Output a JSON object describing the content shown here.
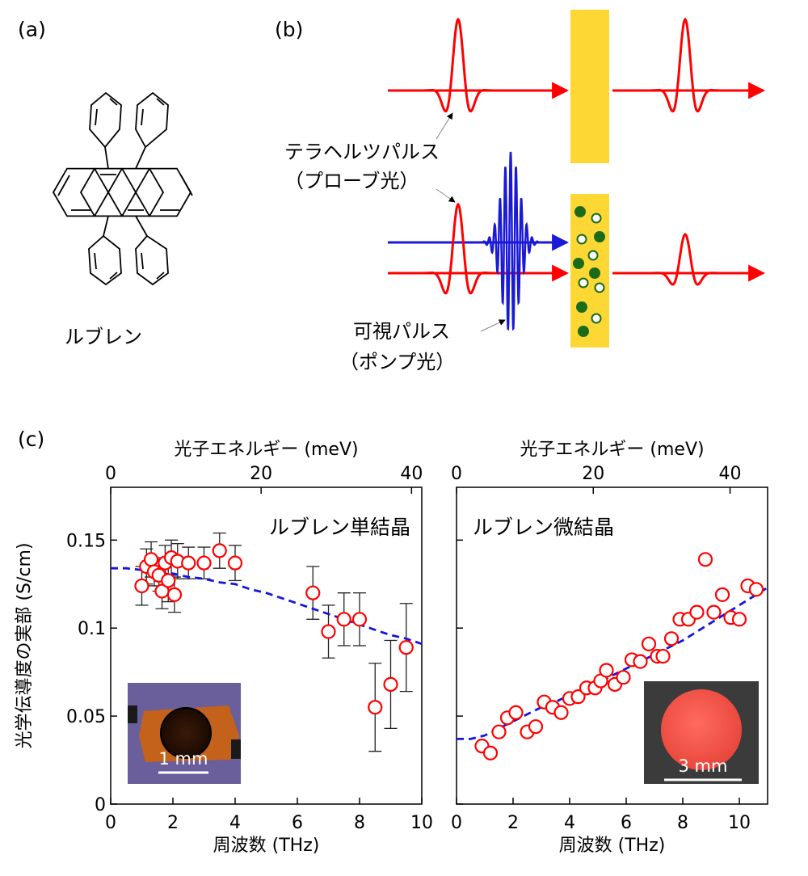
{
  "panels": {
    "a": {
      "label": "(a)",
      "molecule_name": "ルブレン"
    },
    "b": {
      "label": "(b)",
      "probe_label_line1": "テラヘルツパルス",
      "probe_label_line2": "（プローブ光）",
      "pump_label_line1": "可視パルス",
      "pump_label_line2": "（ポンプ光）"
    },
    "c": {
      "label": "(c)"
    }
  },
  "colors": {
    "red": "#ff0000",
    "blue": "#1a1ad6",
    "yellow": "#fdd835",
    "green": "#1b6b1b",
    "fit": "#1515e0",
    "marker": "#ff0000",
    "errorbar": "#222222"
  },
  "chart_data": [
    {
      "type": "scatter",
      "title": "ルブレン単結晶",
      "xlabel": "周波数 (THz)",
      "ylabel": "光学伝導度の実部 (S/cm)",
      "top_xlabel": "光子エネルギー (meV)",
      "xlim": [
        0,
        10
      ],
      "ylim": [
        0,
        0.18
      ],
      "top_xlim_mev": [
        0,
        41.36
      ],
      "xticks": [
        0,
        2,
        4,
        6,
        8,
        10
      ],
      "xtick_labels": [
        "0",
        "2",
        "4",
        "6",
        "8",
        "10"
      ],
      "yticks": [
        0,
        0.05,
        0.1,
        0.15
      ],
      "ytick_labels": [
        "0",
        "0.05",
        "0.1",
        "0.15"
      ],
      "top_xticks": [
        0,
        20,
        40
      ],
      "top_xtick_labels": [
        "0",
        "20",
        "40"
      ],
      "points": {
        "x": [
          1.0,
          1.15,
          1.3,
          1.4,
          1.55,
          1.65,
          1.75,
          1.85,
          1.95,
          2.05,
          2.15,
          2.5,
          3.0,
          3.5,
          4.0,
          6.5,
          7.0,
          7.5,
          8.0,
          8.5,
          9.0,
          9.5
        ],
        "y": [
          0.124,
          0.135,
          0.139,
          0.132,
          0.13,
          0.121,
          0.137,
          0.127,
          0.14,
          0.119,
          0.138,
          0.137,
          0.137,
          0.144,
          0.137,
          0.12,
          0.098,
          0.105,
          0.105,
          0.055,
          0.068,
          0.089
        ],
        "err": [
          0.011,
          0.01,
          0.01,
          0.008,
          0.009,
          0.01,
          0.01,
          0.012,
          0.01,
          0.01,
          0.01,
          0.009,
          0.009,
          0.01,
          0.01,
          0.015,
          0.015,
          0.015,
          0.015,
          0.025,
          0.025,
          0.025
        ]
      },
      "fit": {
        "x": [
          0,
          0.5,
          1,
          1.5,
          2,
          2.5,
          3,
          3.5,
          4,
          4.5,
          5,
          5.5,
          6,
          6.5,
          7,
          7.5,
          8,
          8.5,
          9,
          9.5,
          10
        ],
        "y": [
          0.134,
          0.134,
          0.133,
          0.132,
          0.131,
          0.129,
          0.128,
          0.126,
          0.125,
          0.122,
          0.12,
          0.117,
          0.114,
          0.111,
          0.108,
          0.105,
          0.102,
          0.099,
          0.096,
          0.094,
          0.091
        ]
      },
      "inset_scale_label": "1 mm"
    },
    {
      "type": "scatter",
      "title": "ルブレン微結晶",
      "xlabel": "周波数 (THz)",
      "top_xlabel": "光子エネルギー (meV)",
      "xlim": [
        0,
        11
      ],
      "ylim": [
        0,
        0.18
      ],
      "top_xlim_mev": [
        0,
        45.49
      ],
      "xticks": [
        0,
        2,
        4,
        6,
        8,
        10
      ],
      "xtick_labels": [
        "0",
        "2",
        "4",
        "6",
        "8",
        "10"
      ],
      "yticks": [
        0,
        0.05,
        0.1,
        0.15
      ],
      "top_xticks": [
        0,
        20,
        40
      ],
      "top_xtick_labels": [
        "0",
        "20",
        "40"
      ],
      "points": {
        "x": [
          0.9,
          1.2,
          1.5,
          1.8,
          2.1,
          2.5,
          2.8,
          3.1,
          3.4,
          3.7,
          4.0,
          4.3,
          4.6,
          4.9,
          5.1,
          5.3,
          5.6,
          5.9,
          6.2,
          6.5,
          6.8,
          7.1,
          7.3,
          7.6,
          7.9,
          8.2,
          8.5,
          8.8,
          9.1,
          9.4,
          9.7,
          10.0,
          10.3,
          10.6
        ],
        "y": [
          0.033,
          0.029,
          0.041,
          0.049,
          0.052,
          0.041,
          0.044,
          0.058,
          0.055,
          0.052,
          0.06,
          0.061,
          0.066,
          0.066,
          0.07,
          0.076,
          0.068,
          0.072,
          0.082,
          0.081,
          0.091,
          0.084,
          0.084,
          0.094,
          0.105,
          0.105,
          0.109,
          0.139,
          0.109,
          0.119,
          0.106,
          0.105,
          0.124,
          0.122
        ]
      },
      "fit": {
        "x": [
          0,
          0.5,
          1,
          1.5,
          2,
          2.5,
          3,
          3.5,
          4,
          4.5,
          5,
          5.5,
          6,
          6.5,
          7,
          7.5,
          8,
          8.5,
          9,
          9.5,
          10,
          10.5,
          11
        ],
        "y": [
          0.037,
          0.037,
          0.039,
          0.043,
          0.047,
          0.051,
          0.055,
          0.058,
          0.062,
          0.065,
          0.069,
          0.073,
          0.077,
          0.081,
          0.085,
          0.089,
          0.093,
          0.098,
          0.103,
          0.108,
          0.113,
          0.118,
          0.123
        ]
      },
      "inset_scale_label": "3 mm"
    }
  ]
}
